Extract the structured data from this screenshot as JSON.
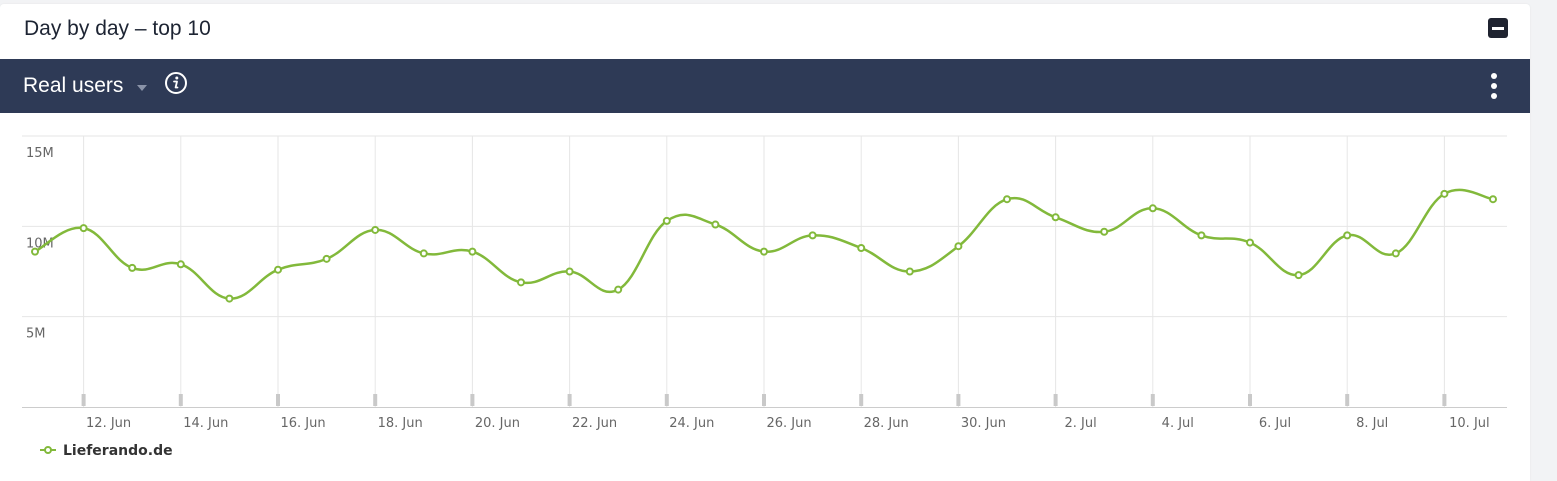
{
  "widget": {
    "title": "Day by day – top 10",
    "metric": "Real users",
    "icons": {
      "collapse": "minus-square-icon",
      "info": "info-circle-icon",
      "menu": "vertical-dots-icon",
      "dropdown": "caret-down-icon"
    }
  },
  "colors": {
    "series": "#82b93b",
    "toolbar_bg": "#2e3a56",
    "grid": "#e6e6e6"
  },
  "chart_data": {
    "type": "line",
    "smooth": true,
    "x": [
      "11. Jun",
      "12. Jun",
      "13. Jun",
      "14. Jun",
      "15. Jun",
      "16. Jun",
      "17. Jun",
      "18. Jun",
      "19. Jun",
      "20. Jun",
      "21. Jun",
      "22. Jun",
      "23. Jun",
      "24. Jun",
      "25. Jun",
      "26. Jun",
      "27. Jun",
      "28. Jun",
      "29. Jun",
      "30. Jun",
      "1. Jul",
      "2. Jul",
      "3. Jul",
      "4. Jul",
      "5. Jul",
      "6. Jul",
      "7. Jul",
      "8. Jul",
      "9. Jul",
      "10. Jul",
      "11. Jul"
    ],
    "x_tick_labels": [
      "12. Jun",
      "14. Jun",
      "16. Jun",
      "18. Jun",
      "20. Jun",
      "22. Jun",
      "24. Jun",
      "26. Jun",
      "28. Jun",
      "30. Jun",
      "2. Jul",
      "4. Jul",
      "6. Jul",
      "8. Jul",
      "10. Jul"
    ],
    "series": [
      {
        "name": "Lieferando.de",
        "values": [
          8.6,
          9.9,
          7.7,
          7.9,
          6.0,
          7.6,
          8.2,
          9.8,
          8.5,
          8.6,
          6.9,
          7.5,
          6.5,
          10.3,
          10.1,
          8.6,
          9.5,
          8.8,
          7.5,
          8.9,
          11.5,
          10.5,
          9.7,
          11.0,
          9.5,
          9.1,
          7.3,
          9.5,
          8.5,
          11.8,
          11.5
        ]
      }
    ],
    "y_ticks": [
      5,
      10,
      15
    ],
    "y_tick_labels": [
      "5M",
      "10M",
      "15M"
    ],
    "ylim": [
      0,
      15
    ],
    "y_unit": "millions",
    "grid": true,
    "legend": "bottom-left"
  }
}
